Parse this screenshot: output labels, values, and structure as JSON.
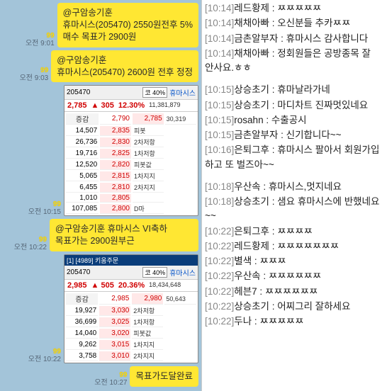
{
  "left": {
    "messages": [
      {
        "badge": "99",
        "time_prefix": "오전",
        "time": "9:01",
        "text": "@구암송기훈\n휴마시스(205470) 2550원전후 5%\n매수 목표가 2900원"
      },
      {
        "badge": "99",
        "time_prefix": "오전",
        "time": "9:03",
        "text": "@구암송기훈\n휴마시스(205470) 2600원 전후 정정"
      },
      {
        "badge": "99",
        "time_prefix": "오전",
        "time": "10:15",
        "type": "stock",
        "stock": {
          "header_code": "205470",
          "header_search": "코 40%",
          "header_name": "휴마시스",
          "price": "2,785",
          "change": "▲   305",
          "pct": "12.30%",
          "qty": "11,381,879",
          "top": [
            "2,790",
            "2,785",
            "30,319"
          ],
          "label_left": "증감",
          "rows": [
            [
              "14,507",
              "2,835",
              "피봇"
            ],
            [
              "26,736",
              "2,830",
              "2차저항"
            ],
            [
              "19,716",
              "2,825",
              "1차저항"
            ],
            [
              "12,520",
              "2,820",
              "피봇값"
            ],
            [
              "5,065",
              "2,815",
              "1차지지"
            ],
            [
              "6,455",
              "2,810",
              "2차지지"
            ],
            [
              "1,010",
              "2,805",
              ""
            ],
            [
              "107,085",
              "2,800",
              "D마"
            ]
          ]
        }
      },
      {
        "badge": "99",
        "time_prefix": "오전",
        "time": "10:22",
        "text": "@구암송기훈 휴마시스 VI축하 목표가는 2900원부근"
      },
      {
        "badge": "99",
        "time_prefix": "오전",
        "time": "10:22",
        "type": "stock",
        "stock": {
          "header_tab": "[1] [4989] 키움주문",
          "header_code": "205470",
          "header_search": "코 40%",
          "header_name": "휴마시스",
          "price": "2,985",
          "change": "▲   505",
          "pct": "20.36%",
          "qty": "18,434,648",
          "top": [
            "2,985",
            "2,980",
            "50,643"
          ],
          "label_left": "증감",
          "rows": [
            [
              "19,927",
              "3,030",
              "2차저항"
            ],
            [
              "36,699",
              "3,025",
              "1차저항"
            ],
            [
              "14,040",
              "3,020",
              "피봇값"
            ],
            [
              "9,262",
              "3,015",
              "1차지지"
            ],
            [
              "3,758",
              "3,010",
              "2차지지"
            ]
          ]
        }
      },
      {
        "badge": "99",
        "time_prefix": "오전",
        "time": "10:27",
        "text": "목표가도달완료",
        "narrow": true
      }
    ]
  },
  "right": {
    "lines": [
      {
        "time": "[10:14]",
        "user": "레드황제",
        "msg": "ㅉㅉㅉㅉㅉ"
      },
      {
        "time": "[10:14]",
        "user": "채채아빠",
        "msg": "오신분들 추카ㅉㅉ"
      },
      {
        "time": "[10:14]",
        "user": "금촌알부자",
        "msg": "휴마시스 감사합니다"
      },
      {
        "time": "[10:14]",
        "user": "채채아빠",
        "msg": "정회원들은 공방종목 잘 안사요.ㅎㅎ"
      },
      {
        "spacer": true
      },
      {
        "time": "[10:15]",
        "user": "상승초기",
        "msg": "휴마날라가네"
      },
      {
        "time": "[10:15]",
        "user": "상승초기",
        "msg": "마디차트 진짜멋있네요"
      },
      {
        "time": "[10:15]",
        "user": "rosahn",
        "msg": "수출공시"
      },
      {
        "time": "[10:15]",
        "user": "금촌알부자",
        "msg": "신기합니다~~"
      },
      {
        "time": "[10:16]",
        "user": "은퇴그후",
        "msg": "휴마시스 팔아서 회원가입 하고 또 벌즈아~~"
      },
      {
        "spacer": true
      },
      {
        "time": "[10:18]",
        "user": "우산속",
        "msg": "휴마시스,멋지네요"
      },
      {
        "time": "[10:18]",
        "user": "상승초기",
        "msg": "샘요 휴마시스에 반했네요~~"
      },
      {
        "time": "[10:22]",
        "user": "은퇴그후",
        "msg": "ㅉㅉㅉㅉ"
      },
      {
        "time": "[10:22]",
        "user": "레드황제",
        "msg": "ㅉㅉㅉㅉㅉㅉㅉ"
      },
      {
        "time": "[10:22]",
        "user": "별색",
        "msg": "ㅉㅉㅉ"
      },
      {
        "time": "[10:22]",
        "user": "우산속",
        "msg": "ㅉㅉㅉㅉㅉㅉ"
      },
      {
        "time": "[10:22]",
        "user": "헤븐7",
        "msg": "ㅉㅉㅉㅉㅉㅉ"
      },
      {
        "time": "[10:22]",
        "user": "상승초기",
        "msg": "어찌그리 잘하세요"
      },
      {
        "time": "[10:22]",
        "user": "두나",
        "msg": "ㅉㅉㅉㅉㅉ"
      }
    ]
  }
}
